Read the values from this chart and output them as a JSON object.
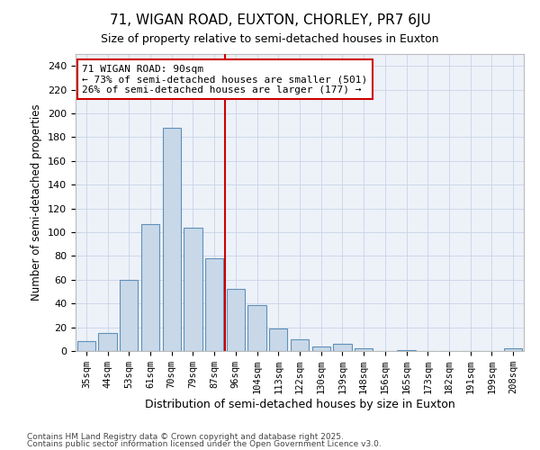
{
  "title": "71, WIGAN ROAD, EUXTON, CHORLEY, PR7 6JU",
  "subtitle": "Size of property relative to semi-detached houses in Euxton",
  "xlabel": "Distribution of semi-detached houses by size in Euxton",
  "ylabel": "Number of semi-detached properties",
  "bar_labels": [
    "35sqm",
    "44sqm",
    "53sqm",
    "61sqm",
    "70sqm",
    "79sqm",
    "87sqm",
    "96sqm",
    "104sqm",
    "113sqm",
    "122sqm",
    "130sqm",
    "139sqm",
    "148sqm",
    "156sqm",
    "165sqm",
    "173sqm",
    "182sqm",
    "191sqm",
    "199sqm",
    "208sqm"
  ],
  "bar_values": [
    8,
    15,
    60,
    107,
    188,
    104,
    78,
    52,
    39,
    19,
    10,
    4,
    6,
    2,
    0,
    1,
    0,
    0,
    0,
    0,
    2
  ],
  "bar_color": "#c8d8e8",
  "bar_edge_color": "#6090b8",
  "pct_smaller": 73,
  "n_smaller": 501,
  "pct_larger": 26,
  "n_larger": 177,
  "vline_color": "#cc0000",
  "vline_x_index": 7.0,
  "annotation_box_facecolor": "#ffffff",
  "annotation_box_edgecolor": "#cc0000",
  "ylim": [
    0,
    250
  ],
  "yticks": [
    0,
    20,
    40,
    60,
    80,
    100,
    120,
    140,
    160,
    180,
    200,
    220,
    240
  ],
  "grid_color": "#c8d4e8",
  "plot_bg_color": "#edf2f9",
  "fig_bg_color": "#ffffff",
  "title_fontsize": 11,
  "subtitle_fontsize": 9,
  "footer_line1": "Contains HM Land Registry data © Crown copyright and database right 2025.",
  "footer_line2": "Contains public sector information licensed under the Open Government Licence v3.0."
}
